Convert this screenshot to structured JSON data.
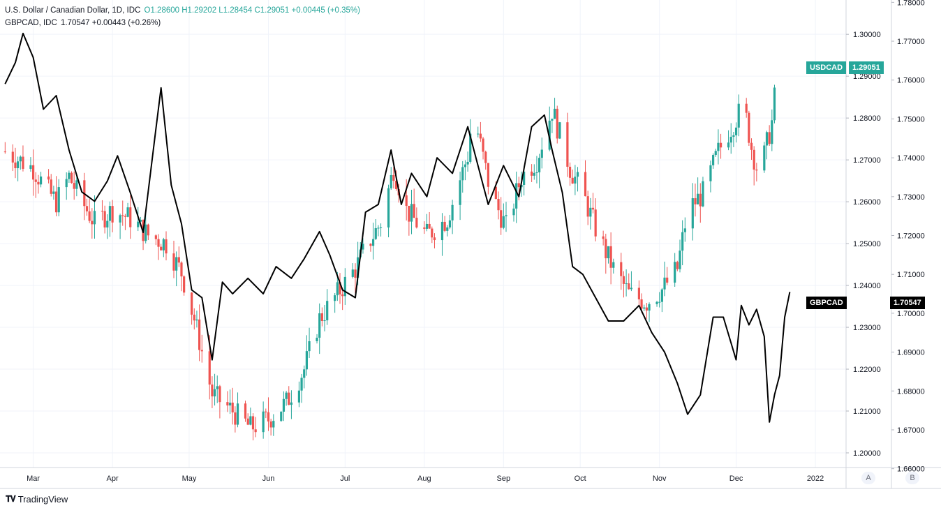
{
  "legend": {
    "main_symbol": "U.S. Dollar / Canadian Dollar, 1D, IDC",
    "main_ohlc": "O1.28600  H1.29202  L1.28454  C1.29051  +0.00445 (+0.35%)",
    "overlay_symbol": "GBPCAD, IDC",
    "overlay_value": "1.70547  +0.00443 (+0.26%)"
  },
  "tags": {
    "usdcad_label": "USDCAD",
    "usdcad_price": "1.29051",
    "gbpcad_label": "GBPCAD",
    "gbpcad_price": "1.70547"
  },
  "scale_buttons": {
    "a": "A",
    "b": "B"
  },
  "brand": {
    "name": "TradingView"
  },
  "colors": {
    "up": "#26a69a",
    "down": "#ef5350",
    "overlay": "#000000",
    "usdcad_tag": "#26a69a",
    "gbpcad_tag": "#000000"
  },
  "chart_data": {
    "type": "candlestick",
    "x_ticks": [
      "Mar",
      "Apr",
      "May",
      "Jun",
      "Jul",
      "Aug",
      "Sep",
      "Oct",
      "Nov",
      "Dec",
      "2022"
    ],
    "y_right_ticks": [
      "1.30000",
      "1.29000",
      "1.28000",
      "1.27000",
      "1.26000",
      "1.25000",
      "1.24000",
      "1.23000",
      "1.22000",
      "1.21000",
      "1.20000"
    ],
    "y_far_ticks": [
      "1.78000",
      "1.77000",
      "1.76000",
      "1.75000",
      "1.74000",
      "1.73000",
      "1.72000",
      "1.71000",
      "1.70000",
      "1.69000",
      "1.68000",
      "1.67000",
      "1.66000"
    ],
    "usdcad_range": [
      1.1965,
      1.3082
    ],
    "gbpcad_range": [
      1.6603,
      1.7806
    ],
    "usdcad_close_series": [
      [
        "Feb 18",
        1.272
      ],
      [
        "Mar 1",
        1.268
      ],
      [
        "Mar 5",
        1.264
      ],
      [
        "Mar 10",
        1.26
      ],
      [
        "Mar 15",
        1.266
      ],
      [
        "Mar 20",
        1.26
      ],
      [
        "Mar 25",
        1.255
      ],
      [
        "Apr 1",
        1.258
      ],
      [
        "Apr 8",
        1.256
      ],
      [
        "Apr 15",
        1.252
      ],
      [
        "Apr 22",
        1.25
      ],
      [
        "Apr 28",
        1.243
      ],
      [
        "May 3",
        1.232
      ],
      [
        "May 10",
        1.214
      ],
      [
        "May 18",
        1.21
      ],
      [
        "May 25",
        1.206
      ],
      [
        "Jun 1",
        1.208
      ],
      [
        "Jun 8",
        1.212
      ],
      [
        "Jun 15",
        1.22
      ],
      [
        "Jun 21",
        1.232
      ],
      [
        "Jun 28",
        1.238
      ],
      [
        "Jul 5",
        1.244
      ],
      [
        "Jul 10",
        1.25
      ],
      [
        "Jul 15",
        1.255
      ],
      [
        "Jul 20",
        1.268
      ],
      [
        "Jul 25",
        1.258
      ],
      [
        "Aug 2",
        1.252
      ],
      [
        "Aug 10",
        1.256
      ],
      [
        "Aug 18",
        1.271
      ],
      [
        "Aug 20",
        1.282
      ],
      [
        "Aug 27",
        1.262
      ],
      [
        "Sep 2",
        1.254
      ],
      [
        "Sep 8",
        1.266
      ],
      [
        "Sep 14",
        1.27
      ],
      [
        "Sep 20",
        1.282
      ],
      [
        "Sep 27",
        1.268
      ],
      [
        "Oct 2",
        1.262
      ],
      [
        "Oct 8",
        1.252
      ],
      [
        "Oct 14",
        1.244
      ],
      [
        "Oct 20",
        1.238
      ],
      [
        "Oct 27",
        1.236
      ],
      [
        "Nov 2",
        1.239
      ],
      [
        "Nov 8",
        1.244
      ],
      [
        "Nov 12",
        1.258
      ],
      [
        "Nov 18",
        1.262
      ],
      [
        "Nov 24",
        1.272
      ],
      [
        "Dec 1",
        1.28
      ],
      [
        "Dec 4",
        1.283
      ],
      [
        "Dec 7",
        1.273
      ],
      [
        "Dec 10",
        1.266
      ],
      [
        "Dec 15",
        1.279
      ],
      [
        "Dec 17",
        1.29051
      ]
    ],
    "gbpcad_series": [
      [
        "Feb 18",
        1.759
      ],
      [
        "Feb 22",
        1.7645
      ],
      [
        "Feb 25",
        1.772
      ],
      [
        "Mar 1",
        1.7658
      ],
      [
        "Mar 5",
        1.7525
      ],
      [
        "Mar 10",
        1.756
      ],
      [
        "Mar 15",
        1.742
      ],
      [
        "Mar 20",
        1.7312
      ],
      [
        "Mar 25",
        1.7288
      ],
      [
        "Mar 30",
        1.734
      ],
      [
        "Apr 3",
        1.7405
      ],
      [
        "Apr 8",
        1.731
      ],
      [
        "Apr 13",
        1.7208
      ],
      [
        "Apr 18",
        1.7475
      ],
      [
        "Apr 20",
        1.758
      ],
      [
        "Apr 24",
        1.733
      ],
      [
        "Apr 28",
        1.723
      ],
      [
        "May 2",
        1.706
      ],
      [
        "May 6",
        1.704
      ],
      [
        "May 10",
        1.688
      ],
      [
        "May 14",
        1.708
      ],
      [
        "May 18",
        1.705
      ],
      [
        "May 24",
        1.709
      ],
      [
        "May 30",
        1.705
      ],
      [
        "Jun 4",
        1.712
      ],
      [
        "Jun 10",
        1.709
      ],
      [
        "Jun 15",
        1.714
      ],
      [
        "Jun 21",
        1.721
      ],
      [
        "Jun 25",
        1.715
      ],
      [
        "Jun 30",
        1.706
      ],
      [
        "Jul 5",
        1.704
      ],
      [
        "Jul 9",
        1.726
      ],
      [
        "Jul 14",
        1.728
      ],
      [
        "Jul 19",
        1.742
      ],
      [
        "Jul 23",
        1.728
      ],
      [
        "Jul 27",
        1.736
      ],
      [
        "Aug 2",
        1.73
      ],
      [
        "Aug 6",
        1.74
      ],
      [
        "Aug 12",
        1.736
      ],
      [
        "Aug 18",
        1.748
      ],
      [
        "Aug 22",
        1.738
      ],
      [
        "Aug 26",
        1.728
      ],
      [
        "Sep 1",
        1.738
      ],
      [
        "Sep 7",
        1.73
      ],
      [
        "Sep 12",
        1.748
      ],
      [
        "Sep 17",
        1.751
      ],
      [
        "Sep 20",
        1.742
      ],
      [
        "Sep 24",
        1.731
      ],
      [
        "Sep 28",
        1.712
      ],
      [
        "Oct 2",
        1.71
      ],
      [
        "Oct 7",
        1.704
      ],
      [
        "Oct 12",
        1.698
      ],
      [
        "Oct 18",
        1.698
      ],
      [
        "Oct 24",
        1.702
      ],
      [
        "Oct 29",
        1.695
      ],
      [
        "Nov 3",
        1.69
      ],
      [
        "Nov 8",
        1.682
      ],
      [
        "Nov 12",
        1.674
      ],
      [
        "Nov 17",
        1.679
      ],
      [
        "Nov 22",
        1.699
      ],
      [
        "Nov 26",
        1.699
      ],
      [
        "Dec 1",
        1.688
      ],
      [
        "Dec 3",
        1.702
      ],
      [
        "Dec 6",
        1.697
      ],
      [
        "Dec 9",
        1.701
      ],
      [
        "Dec 12",
        1.694
      ],
      [
        "Dec 14",
        1.672
      ],
      [
        "Dec 16",
        1.679
      ],
      [
        "Dec 18",
        1.684
      ],
      [
        "Dec 20",
        1.699
      ],
      [
        "Dec 22",
        1.70547
      ]
    ]
  }
}
